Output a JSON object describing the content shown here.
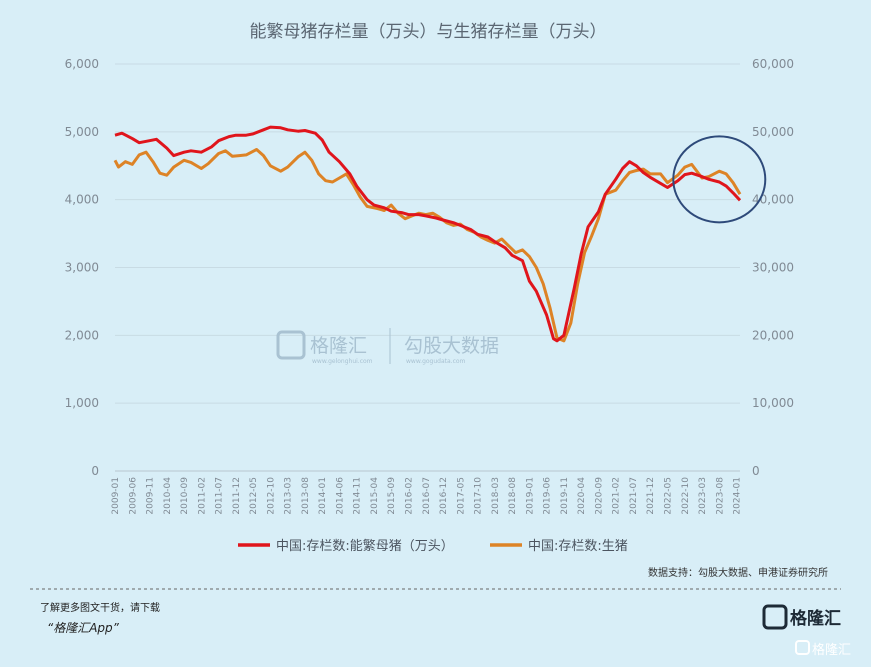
{
  "chart_data": {
    "type": "line",
    "title": "能繁母猪存栏量（万头）与生猪存栏量（万头）",
    "left_axis": {
      "ticks": [
        "0",
        "1,000",
        "2,000",
        "3,000",
        "4,000",
        "5,000",
        "6,000"
      ],
      "ylim": [
        0,
        6000
      ]
    },
    "right_axis": {
      "ticks": [
        "0",
        "10,000",
        "20,000",
        "30,000",
        "40,000",
        "50,000",
        "60,000"
      ],
      "ylim": [
        0,
        60000
      ]
    },
    "x_tick_labels": [
      "2009-01",
      "2009-06",
      "2009-11",
      "2010-04",
      "2010-09",
      "2011-02",
      "2011-07",
      "2011-12",
      "2012-05",
      "2012-10",
      "2013-03",
      "2013-08",
      "2014-01",
      "2014-06",
      "2014-11",
      "2015-04",
      "2015-09",
      "2016-02",
      "2016-07",
      "2016-12",
      "2017-05",
      "2017-10",
      "2018-03",
      "2018-08",
      "2019-01",
      "2019-06",
      "2019-11",
      "2020-04",
      "2020-09",
      "2021-02",
      "2021-07",
      "2021-12",
      "2022-05",
      "2022-10",
      "2023-03",
      "2023-08",
      "2024-01"
    ],
    "series": [
      {
        "name": "中国:存栏数:能繁母猪（万头）",
        "axis": "left",
        "color": "#e0151c",
        "points": [
          [
            "2009-01",
            4950
          ],
          [
            "2009-03",
            4980
          ],
          [
            "2009-06",
            4900
          ],
          [
            "2009-08",
            4840
          ],
          [
            "2009-11",
            4870
          ],
          [
            "2010-01",
            4890
          ],
          [
            "2010-04",
            4760
          ],
          [
            "2010-06",
            4650
          ],
          [
            "2010-09",
            4700
          ],
          [
            "2010-11",
            4720
          ],
          [
            "2011-02",
            4700
          ],
          [
            "2011-05",
            4780
          ],
          [
            "2011-07",
            4870
          ],
          [
            "2011-10",
            4930
          ],
          [
            "2011-12",
            4950
          ],
          [
            "2012-03",
            4950
          ],
          [
            "2012-05",
            4970
          ],
          [
            "2012-08",
            5030
          ],
          [
            "2012-10",
            5070
          ],
          [
            "2013-01",
            5060
          ],
          [
            "2013-03",
            5030
          ],
          [
            "2013-06",
            5010
          ],
          [
            "2013-08",
            5020
          ],
          [
            "2013-11",
            4980
          ],
          [
            "2014-01",
            4880
          ],
          [
            "2014-03",
            4700
          ],
          [
            "2014-06",
            4560
          ],
          [
            "2014-09",
            4380
          ],
          [
            "2014-11",
            4200
          ],
          [
            "2015-02",
            4000
          ],
          [
            "2015-04",
            3920
          ],
          [
            "2015-07",
            3880
          ],
          [
            "2015-09",
            3830
          ],
          [
            "2015-12",
            3810
          ],
          [
            "2016-02",
            3780
          ],
          [
            "2016-05",
            3780
          ],
          [
            "2016-07",
            3760
          ],
          [
            "2016-10",
            3730
          ],
          [
            "2016-12",
            3700
          ],
          [
            "2017-03",
            3660
          ],
          [
            "2017-05",
            3620
          ],
          [
            "2017-08",
            3560
          ],
          [
            "2017-10",
            3490
          ],
          [
            "2018-01",
            3450
          ],
          [
            "2018-03",
            3380
          ],
          [
            "2018-06",
            3290
          ],
          [
            "2018-08",
            3180
          ],
          [
            "2018-11",
            3100
          ],
          [
            "2019-01",
            2800
          ],
          [
            "2019-03",
            2650
          ],
          [
            "2019-06",
            2300
          ],
          [
            "2019-08",
            1950
          ],
          [
            "2019-09",
            1920
          ],
          [
            "2019-11",
            2000
          ],
          [
            "2020-02",
            2700
          ],
          [
            "2020-04",
            3200
          ],
          [
            "2020-06",
            3600
          ],
          [
            "2020-09",
            3820
          ],
          [
            "2020-11",
            4080
          ],
          [
            "2021-02",
            4300
          ],
          [
            "2021-04",
            4460
          ],
          [
            "2021-06",
            4560
          ],
          [
            "2021-08",
            4500
          ],
          [
            "2021-10",
            4400
          ],
          [
            "2021-12",
            4330
          ],
          [
            "2022-03",
            4240
          ],
          [
            "2022-05",
            4180
          ],
          [
            "2022-08",
            4280
          ],
          [
            "2022-10",
            4370
          ],
          [
            "2022-12",
            4390
          ],
          [
            "2023-03",
            4340
          ],
          [
            "2023-05",
            4300
          ],
          [
            "2023-08",
            4260
          ],
          [
            "2023-10",
            4200
          ],
          [
            "2023-12",
            4100
          ],
          [
            "2024-02",
            3990
          ]
        ]
      },
      {
        "name": "中国:存栏数:生猪",
        "axis": "right",
        "color": "#dd8326",
        "points": [
          [
            "2009-01",
            45800
          ],
          [
            "2009-02",
            44800
          ],
          [
            "2009-04",
            45600
          ],
          [
            "2009-06",
            45200
          ],
          [
            "2009-08",
            46600
          ],
          [
            "2009-10",
            47000
          ],
          [
            "2009-12",
            45600
          ],
          [
            "2010-02",
            43900
          ],
          [
            "2010-04",
            43600
          ],
          [
            "2010-06",
            44800
          ],
          [
            "2010-09",
            45800
          ],
          [
            "2010-11",
            45500
          ],
          [
            "2011-02",
            44600
          ],
          [
            "2011-04",
            45300
          ],
          [
            "2011-07",
            46800
          ],
          [
            "2011-09",
            47200
          ],
          [
            "2011-11",
            46400
          ],
          [
            "2012-01",
            46500
          ],
          [
            "2012-03",
            46600
          ],
          [
            "2012-06",
            47400
          ],
          [
            "2012-08",
            46500
          ],
          [
            "2012-10",
            45000
          ],
          [
            "2013-01",
            44200
          ],
          [
            "2013-03",
            44800
          ],
          [
            "2013-06",
            46300
          ],
          [
            "2013-08",
            47000
          ],
          [
            "2013-10",
            45800
          ],
          [
            "2013-12",
            43800
          ],
          [
            "2014-02",
            42800
          ],
          [
            "2014-04",
            42600
          ],
          [
            "2014-06",
            43200
          ],
          [
            "2014-08",
            43800
          ],
          [
            "2014-10",
            42200
          ],
          [
            "2014-12",
            40400
          ],
          [
            "2015-02",
            39000
          ],
          [
            "2015-05",
            38700
          ],
          [
            "2015-07",
            38400
          ],
          [
            "2015-09",
            39200
          ],
          [
            "2015-11",
            38000
          ],
          [
            "2016-01",
            37200
          ],
          [
            "2016-03",
            37600
          ],
          [
            "2016-05",
            38000
          ],
          [
            "2016-07",
            37800
          ],
          [
            "2016-09",
            38000
          ],
          [
            "2016-11",
            37400
          ],
          [
            "2017-01",
            36600
          ],
          [
            "2017-03",
            36200
          ],
          [
            "2017-05",
            36400
          ],
          [
            "2017-07",
            35600
          ],
          [
            "2017-09",
            35200
          ],
          [
            "2017-11",
            34500
          ],
          [
            "2018-01",
            34000
          ],
          [
            "2018-03",
            33600
          ],
          [
            "2018-05",
            34200
          ],
          [
            "2018-07",
            33200
          ],
          [
            "2018-09",
            32200
          ],
          [
            "2018-11",
            32600
          ],
          [
            "2019-01",
            31600
          ],
          [
            "2019-03",
            30000
          ],
          [
            "2019-05",
            27600
          ],
          [
            "2019-07",
            24000
          ],
          [
            "2019-09",
            19600
          ],
          [
            "2019-11",
            19200
          ],
          [
            "2020-01",
            21800
          ],
          [
            "2020-03",
            27600
          ],
          [
            "2020-05",
            32200
          ],
          [
            "2020-07",
            34600
          ],
          [
            "2020-09",
            37200
          ],
          [
            "2020-11",
            40800
          ],
          [
            "2021-02",
            41400
          ],
          [
            "2021-04",
            42800
          ],
          [
            "2021-06",
            44000
          ],
          [
            "2021-08",
            44300
          ],
          [
            "2021-10",
            44500
          ],
          [
            "2021-12",
            43800
          ],
          [
            "2022-03",
            43800
          ],
          [
            "2022-05",
            42500
          ],
          [
            "2022-08",
            43600
          ],
          [
            "2022-10",
            44800
          ],
          [
            "2022-12",
            45200
          ],
          [
            "2023-03",
            43200
          ],
          [
            "2023-05",
            43400
          ],
          [
            "2023-08",
            44200
          ],
          [
            "2023-10",
            43800
          ],
          [
            "2023-12",
            42500
          ],
          [
            "2024-02",
            40800
          ]
        ]
      }
    ],
    "legend_placement": "bottom",
    "grid": true
  },
  "overlays": {
    "circle_color": "#2e4a7a",
    "circle_center_date": "2023-08",
    "circle_center_value": 4300
  },
  "watermark": {
    "brand_cn": "格隆汇",
    "brand_url": "www.gelonghui.com",
    "data_cn": "勾股大数据",
    "data_url": "www.gogudata.com"
  },
  "source_text": "数据支持：勾股大数据、申港证券研究所",
  "footer": {
    "download_hint": "了解更多图文干货，请下载",
    "app_name": "“格隆汇App”",
    "logo_text": "格隆汇",
    "corner_text": "格隆汇"
  }
}
